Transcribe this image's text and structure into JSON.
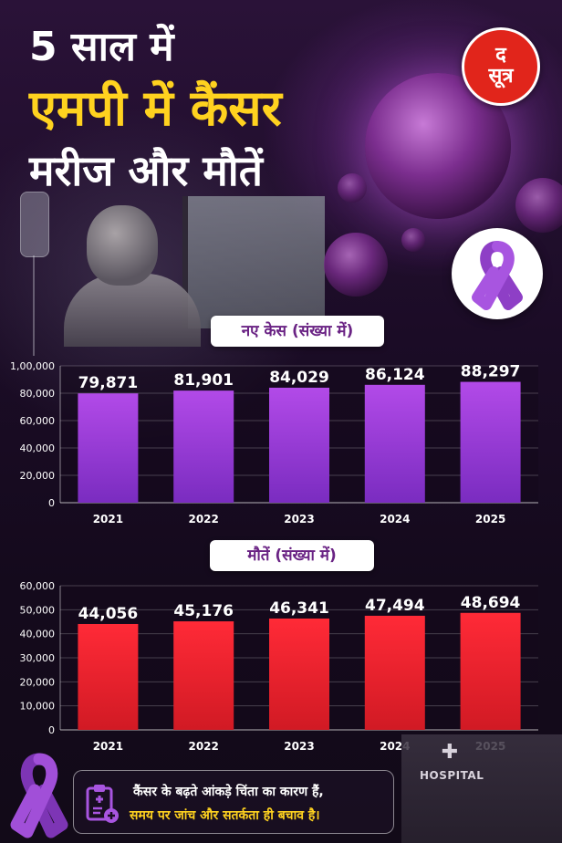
{
  "header": {
    "title_line1": "5 साल में",
    "title_line2": "एमपी में कैंसर",
    "title_line3": "मरीज और मौतें"
  },
  "logo": {
    "line1": "द",
    "line2": "सूत्र"
  },
  "hospital_sign": "HOSPITAL",
  "footer": {
    "line1": "कैंसर के बढ़ते आंकड़े चिंता का कारण हैं,",
    "line2": "समय पर जांच और सतर्कता ही बचाव है।"
  },
  "colors": {
    "title_yellow": "#ffd21f",
    "cases_bar": "#9b3fd6",
    "deaths_bar": "#e8222c",
    "logo_red": "#e1251b",
    "ribbon_purple": "#8e3fc6"
  },
  "icons": [
    "awareness-ribbon-icon",
    "clipboard-medical-icon"
  ],
  "chart_data": [
    {
      "type": "bar",
      "title": "नए केस (संख्या में)",
      "categories": [
        "2021",
        "2022",
        "2023",
        "2024",
        "2025"
      ],
      "values": [
        79871,
        81901,
        84029,
        86124,
        88297
      ],
      "value_labels": [
        "79,871",
        "81,901",
        "84,029",
        "86,124",
        "88,297"
      ],
      "ylim": [
        0,
        100000
      ],
      "yticks": [
        0,
        20000,
        40000,
        60000,
        80000,
        100000
      ],
      "ytick_labels": [
        "0",
        "20,000",
        "40,000",
        "60,000",
        "80,000",
        "1,00,000"
      ],
      "grid": true,
      "color": "#9b3fd6"
    },
    {
      "type": "bar",
      "title": "मौतें (संख्या में)",
      "categories": [
        "2021",
        "2022",
        "2023",
        "2024",
        "2025"
      ],
      "values": [
        44056,
        45176,
        46341,
        47494,
        48694
      ],
      "value_labels": [
        "44,056",
        "45,176",
        "46,341",
        "47,494",
        "48,694"
      ],
      "ylim": [
        0,
        60000
      ],
      "yticks": [
        0,
        10000,
        20000,
        30000,
        40000,
        50000,
        60000
      ],
      "ytick_labels": [
        "0",
        "10,000",
        "20,000",
        "30,000",
        "40,000",
        "50,000",
        "60,000"
      ],
      "grid": true,
      "color": "#e8222c"
    }
  ]
}
